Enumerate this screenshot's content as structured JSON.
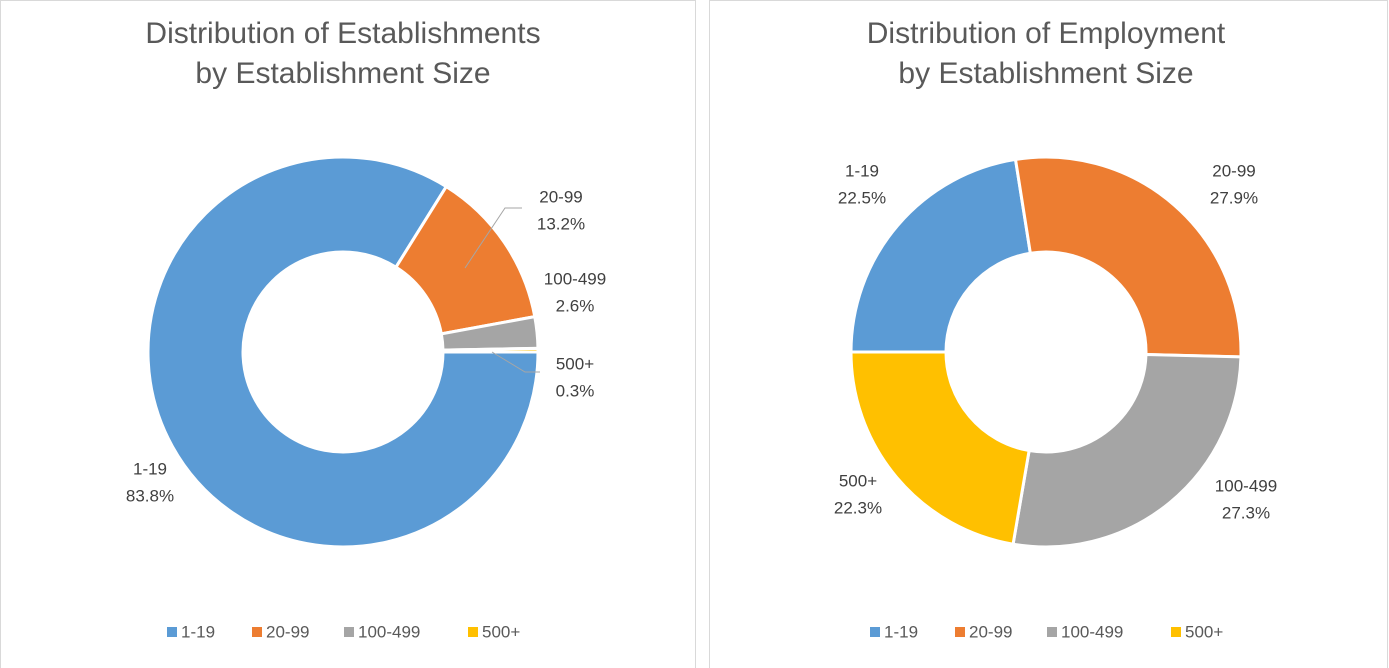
{
  "chart_data": [
    {
      "type": "pie",
      "donut": true,
      "title": [
        "Distribution of Establishments",
        "by Establishment Size"
      ],
      "categories": [
        "1-19",
        "20-99",
        "100-499",
        "500+"
      ],
      "values": [
        83.8,
        13.2,
        2.6,
        0.3
      ],
      "value_labels": [
        "83.8%",
        "13.2%",
        "2.6%",
        "0.3%"
      ],
      "colors": [
        "#5b9bd5",
        "#ed7d31",
        "#a5a5a5",
        "#ffc000"
      ],
      "legend": "bottom"
    },
    {
      "type": "pie",
      "donut": true,
      "title": [
        "Distribution of Employment",
        "by Establishment Size"
      ],
      "categories": [
        "1-19",
        "20-99",
        "100-499",
        "500+"
      ],
      "values": [
        22.5,
        27.9,
        27.3,
        22.3
      ],
      "value_labels": [
        "22.5%",
        "27.9%",
        "27.3%",
        "22.3%"
      ],
      "colors": [
        "#5b9bd5",
        "#ed7d31",
        "#a5a5a5",
        "#ffc000"
      ],
      "legend": "bottom"
    }
  ]
}
